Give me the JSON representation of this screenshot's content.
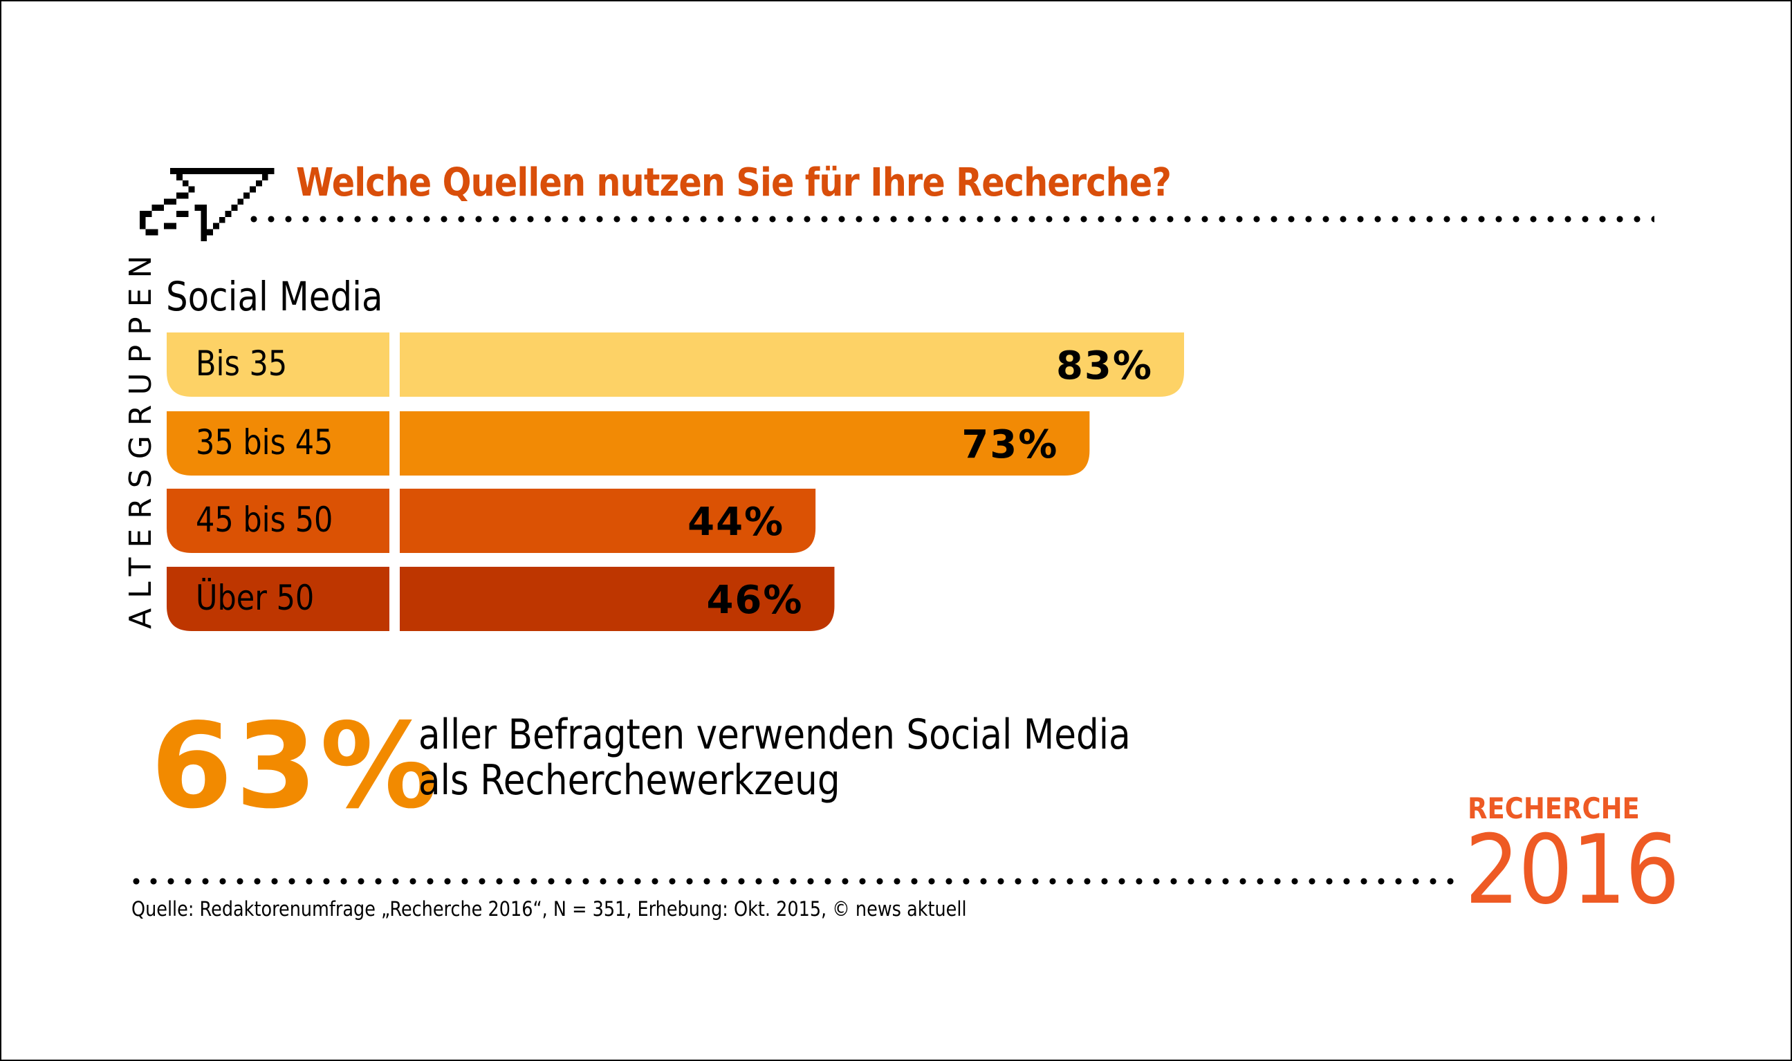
{
  "header": {
    "title": "Welche Quellen nutzen Sie für Ihre Recherche?",
    "icon": "pixel-cursor-arrow-icon"
  },
  "colors": {
    "title": "#D94E0A",
    "accent_orange": "#F28A00",
    "logo": "#EE5A24",
    "bar_bis35": "#FDD266",
    "bar_35bis45": "#F28A05",
    "bar_45bis50": "#DB5204",
    "bar_ueber50": "#BE3600"
  },
  "chart_data": {
    "type": "bar",
    "orientation": "horizontal",
    "title": "Social Media",
    "ylabel": "ALTERSGRUPPEN",
    "xlabel": "",
    "categories": [
      "Bis 35",
      "35 bis 45",
      "45 bis 50",
      "Über 50"
    ],
    "values": [
      83,
      73,
      44,
      46
    ],
    "value_labels": [
      "83%",
      "73%",
      "44%",
      "46%"
    ],
    "unit": "%",
    "xlim": [
      0,
      100
    ],
    "grid": false,
    "legend": "none"
  },
  "summary": {
    "big_value": "63%",
    "text_line1": "aller Befragten verwenden Social Media",
    "text_line2": "als Recherchewerkzeug"
  },
  "logo": {
    "top": "RECHERCHE",
    "year": "2016"
  },
  "footer": {
    "source": "Quelle: Redaktorenumfrage „Recherche 2016“, N = 351, Erhebung: Okt. 2015, © news aktuell"
  }
}
